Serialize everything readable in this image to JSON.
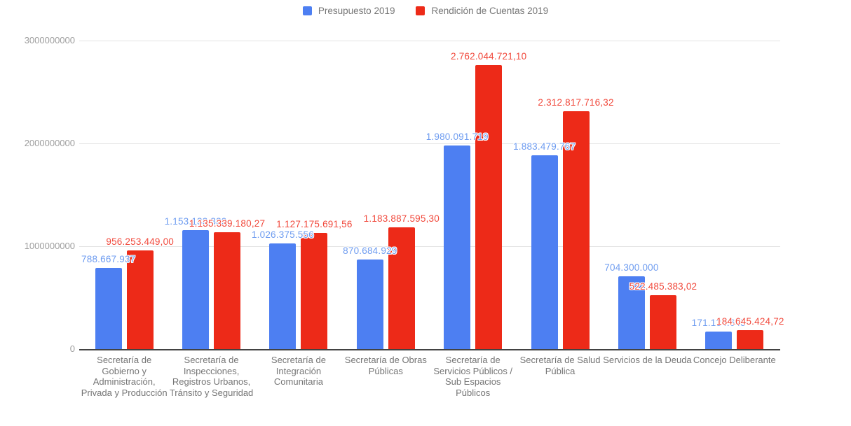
{
  "legend": {
    "items": [
      {
        "label": "Presupuesto 2019",
        "color": "#4D7FF2"
      },
      {
        "label": "Rendición de Cuentas 2019",
        "color": "#ED2A18"
      }
    ]
  },
  "chart_data": {
    "type": "bar",
    "title": "",
    "xlabel": "",
    "ylabel": "",
    "categories": [
      "Secretaría de Gobierno y Administración, Privada y Producción",
      "Secretaría de Inspecciones, Registros Urbanos, Tránsito y Seguridad",
      "Secretaría de Integración Comunitaria",
      "Secretaría de Obras Públicas",
      "Secretaría de Servicios Públicos / Sub Espacios Públicos",
      "Secretaría de Salud Pública",
      "Servicios de la Deuda",
      "Concejo Deliberante"
    ],
    "series": [
      {
        "name": "Presupuesto 2019",
        "color": "#4D7FF2",
        "label_color": "#6E9CF0",
        "values": [
          788667937,
          1153133339,
          1026375556,
          870684929,
          1980091719,
          1883479767,
          704300000,
          171134645
        ],
        "labels": [
          "788.667.937",
          "1.153.133.339",
          "1.026.375.556",
          "870.684.929",
          "1.980.091.719",
          "1.883.479.767",
          "704.300.000",
          "171.134.645"
        ]
      },
      {
        "name": "Rendición de Cuentas 2019",
        "color": "#ED2A18",
        "label_color": "#F1493C",
        "values": [
          956253449.0,
          1135339180.27,
          1127175691.56,
          1183887595.3,
          2762044721.1,
          2312817716.32,
          522485383.02,
          184645424.72
        ],
        "labels": [
          "956.253.449,00",
          "1.135.339.180,27",
          "1.127.175.691,56",
          "1.183.887.595,30",
          "2.762.044.721,10",
          "2.312.817.716,32",
          "522.485.383,02",
          "184.645.424,72"
        ]
      }
    ],
    "ylim": [
      0,
      3000000000
    ],
    "y_ticks": [
      {
        "value": 0,
        "label": "0"
      },
      {
        "value": 1000000000,
        "label": "1000000000"
      },
      {
        "value": 2000000000,
        "label": "2000000000"
      },
      {
        "value": 3000000000,
        "label": "3000000000"
      }
    ],
    "grid": true,
    "legend_position": "top"
  }
}
